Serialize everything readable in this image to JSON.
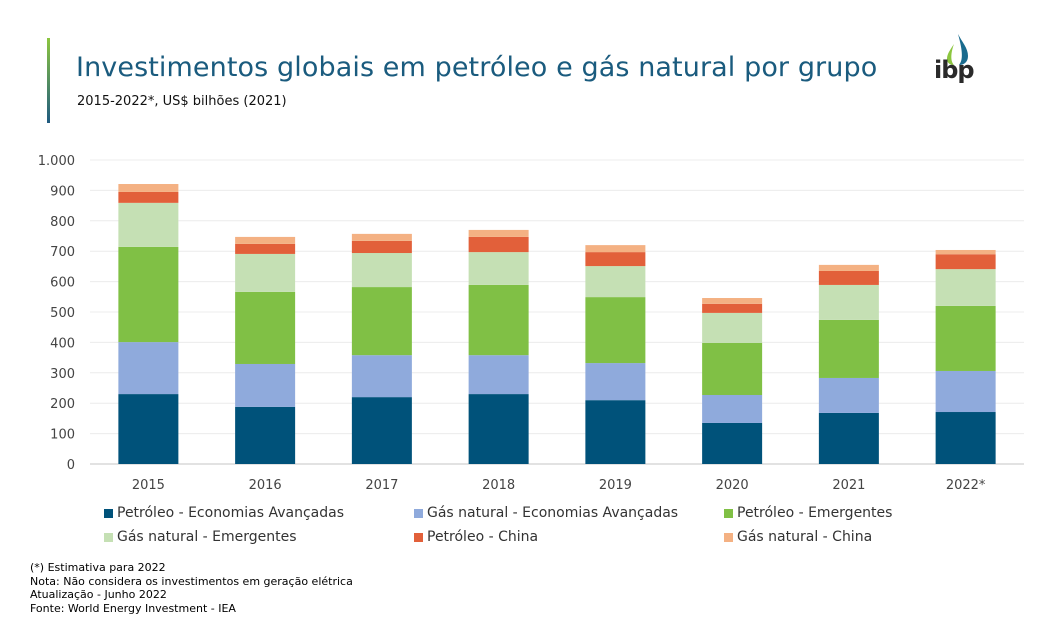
{
  "header": {
    "title": "Investimentos globais em petróleo e gás natural por grupo",
    "subtitle": "2015-2022*, US$ bilhões (2021)",
    "logo_text": "ibp",
    "logo_icon": "drop-icon"
  },
  "chart_data": {
    "type": "bar",
    "stacked": true,
    "title": "Investimentos globais em petróleo e gás natural por grupo",
    "subtitle": "2015-2022*, US$ bilhões (2021)",
    "xlabel": "",
    "ylabel": "",
    "ylim": [
      0,
      1000
    ],
    "yticks": [
      0,
      100,
      200,
      300,
      400,
      500,
      600,
      700,
      800,
      900,
      1000
    ],
    "ytick_labels": [
      "0",
      "100",
      "200",
      "300",
      "400",
      "500",
      "600",
      "700",
      "800",
      "900",
      "1.000"
    ],
    "grid": true,
    "legend_position": "bottom",
    "categories": [
      "2015",
      "2016",
      "2017",
      "2018",
      "2019",
      "2020",
      "2021",
      "2022*"
    ],
    "series": [
      {
        "name": "Petróleo - Economias Avançadas",
        "color": "#00527a",
        "values": [
          230,
          188,
          220,
          230,
          210,
          135,
          168,
          171
        ]
      },
      {
        "name": "Gás natural - Economias Avançadas",
        "color": "#8faadc",
        "values": [
          171,
          141,
          138,
          128,
          122,
          92,
          115,
          135
        ]
      },
      {
        "name": "Petróleo - Emergentes",
        "color": "#80c045",
        "values": [
          313,
          237,
          224,
          231,
          217,
          171,
          191,
          214
        ]
      },
      {
        "name": "Gás natural - Emergentes",
        "color": "#c5e0b4",
        "values": [
          145,
          125,
          112,
          108,
          102,
          99,
          115,
          121
        ]
      },
      {
        "name": "Petróleo - China",
        "color": "#e2603a",
        "values": [
          36,
          33,
          40,
          50,
          46,
          30,
          46,
          49
        ]
      },
      {
        "name": "Gás natural - China",
        "color": "#f4b183",
        "values": [
          26,
          23,
          23,
          23,
          23,
          19,
          20,
          14
        ]
      }
    ]
  },
  "notes": [
    "(*) Estimativa  para 2022",
    "Nota: Não considera os investimentos em geração elétrica",
    "Atualização - Junho 2022",
    "Fonte: World Energy Investment - IEA"
  ]
}
